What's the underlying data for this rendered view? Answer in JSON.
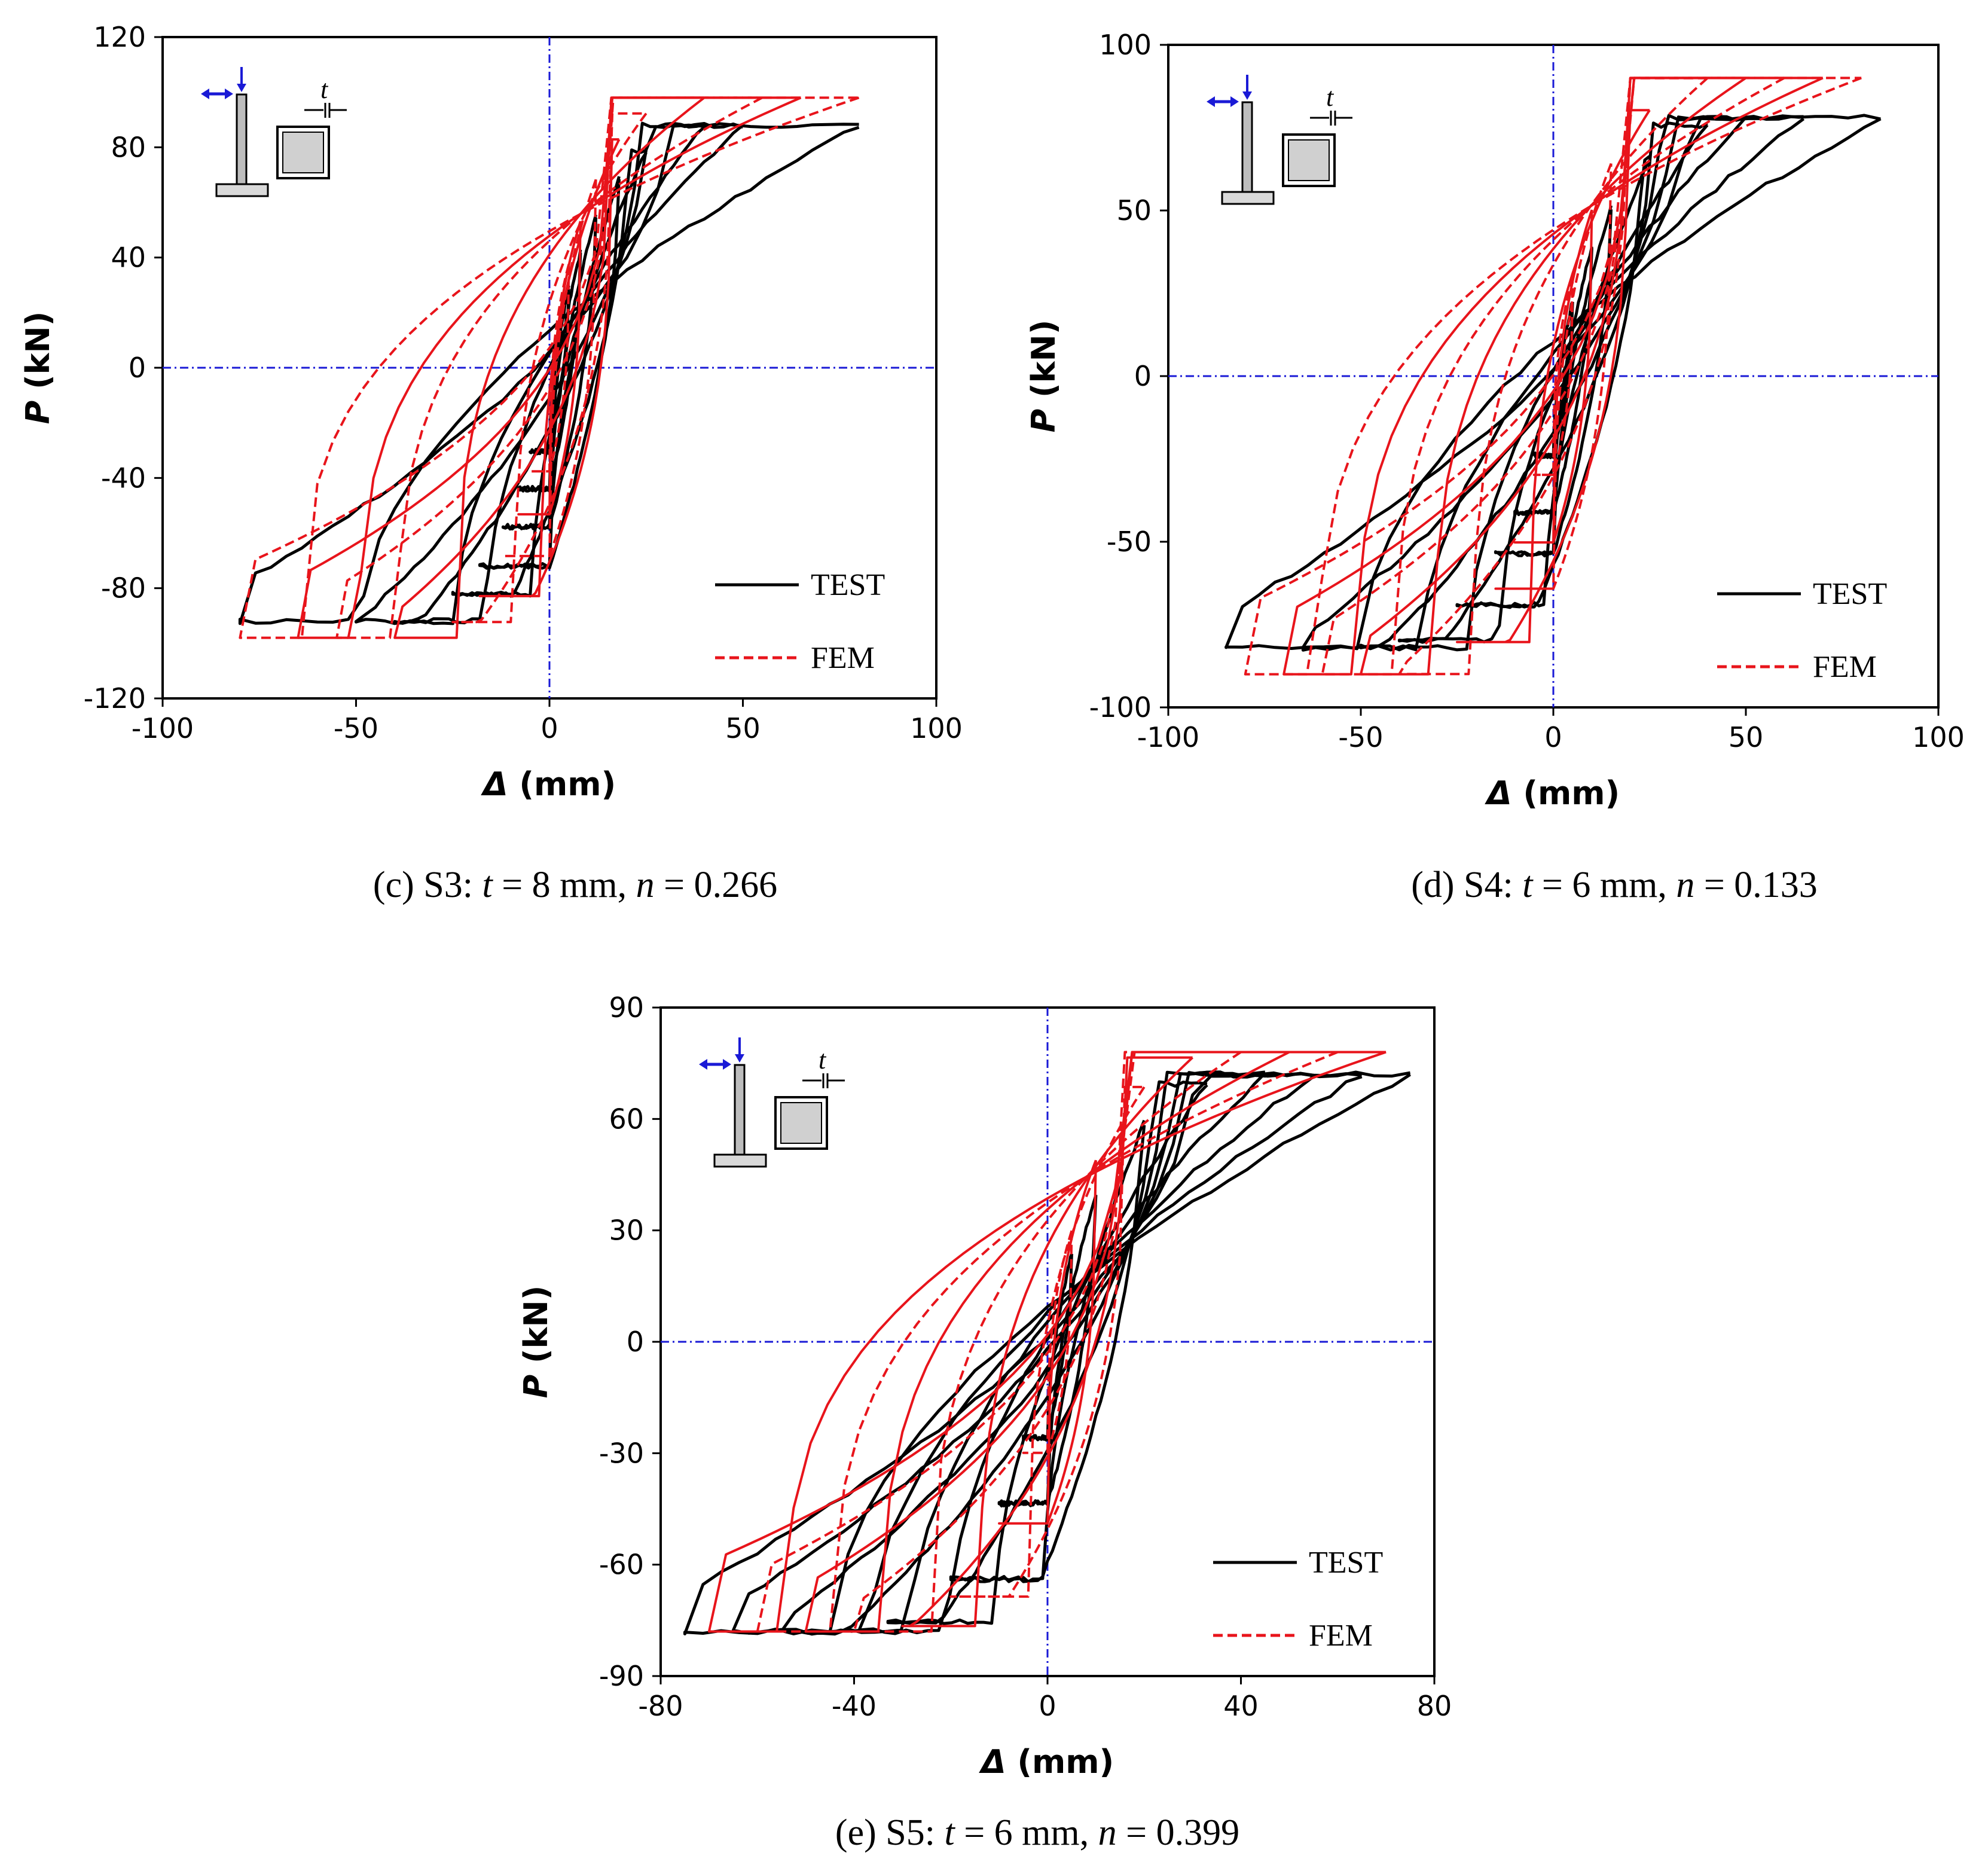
{
  "figure": {
    "description_labels": [
      "TEST",
      "FEM"
    ]
  },
  "colors": {
    "test": "#000000",
    "fem": "#e8141b",
    "reference": "#1a1ad6",
    "axis": "#000000"
  },
  "chart_data": [
    {
      "id": "c",
      "type": "line",
      "caption": {
        "prefix": "(c) S3: ",
        "t_var": "t",
        "t_val": " = 8 mm, ",
        "n_var": "n",
        "n_val": " = 0.266"
      },
      "xlabel": {
        "sym": "Δ",
        "unit": " (mm)"
      },
      "ylabel": {
        "sym": "P",
        "unit": " (kN)"
      },
      "xlim": [
        -100,
        100
      ],
      "ylim": [
        -120,
        120
      ],
      "xticks": [
        "-100",
        "-50",
        "0",
        "50",
        "100"
      ],
      "yticks": [
        "-120",
        "-80",
        "-40",
        "0",
        "40",
        "80",
        "120"
      ],
      "legend": {
        "position": "bottom-right",
        "entries": [
          "TEST",
          "FEM"
        ]
      },
      "inset_label": "t",
      "series": [
        {
          "name": "TEST",
          "peak_amplitudes_mm": [
            5,
            8,
            12,
            18,
            25,
            40,
            50,
            80
          ],
          "pmax": 88,
          "pmin": -92,
          "yield_disp": 6
        },
        {
          "name": "FEM",
          "peak_amplitudes_mm": [
            5,
            8,
            12,
            18,
            25,
            40,
            55,
            65,
            80
          ],
          "pmax": 98,
          "pmin": -98,
          "yield_disp": 5
        }
      ]
    },
    {
      "id": "d",
      "type": "line",
      "caption": {
        "prefix": "(d) S4: ",
        "t_var": "t",
        "t_val": " = 6 mm, ",
        "n_var": "n",
        "n_val": " = 0.133"
      },
      "xlabel": {
        "sym": "Δ",
        "unit": " (mm)"
      },
      "ylabel": {
        "sym": "P",
        "unit": " (kN)"
      },
      "xlim": [
        -100,
        100
      ],
      "ylim": [
        -100,
        100
      ],
      "xticks": [
        "-100",
        "-50",
        "0",
        "50",
        "100"
      ],
      "yticks": [
        "-100",
        "-50",
        "0",
        "50",
        "100"
      ],
      "legend": {
        "position": "bottom-right",
        "entries": [
          "TEST",
          "FEM"
        ]
      },
      "inset_label": "t",
      "series": [
        {
          "name": "TEST",
          "peak_amplitudes_mm": [
            5,
            10,
            15,
            25,
            40,
            50,
            65,
            85
          ],
          "pmax": 78,
          "pmin": -82,
          "yield_disp": 7
        },
        {
          "name": "FEM",
          "peak_amplitudes_mm": [
            5,
            10,
            15,
            25,
            40,
            50,
            60,
            70,
            80
          ],
          "pmax": 90,
          "pmin": -90,
          "yield_disp": 6
        }
      ]
    },
    {
      "id": "e",
      "type": "line",
      "caption": {
        "prefix": "(e) S5: ",
        "t_var": "t",
        "t_val": " = 6 mm, ",
        "n_var": "n",
        "n_val": " = 0.399"
      },
      "xlabel": {
        "sym": "Δ",
        "unit": " (mm)"
      },
      "ylabel": {
        "sym": "P",
        "unit": " (kN)"
      },
      "xlim": [
        -80,
        80
      ],
      "ylim": [
        -90,
        90
      ],
      "xticks": [
        "-80",
        "-40",
        "0",
        "40",
        "80"
      ],
      "yticks": [
        "-90",
        "-60",
        "-30",
        "0",
        "30",
        "60",
        "90"
      ],
      "legend": {
        "position": "bottom-right",
        "entries": [
          "TEST",
          "FEM"
        ]
      },
      "inset_label": "t",
      "series": [
        {
          "name": "TEST",
          "peak_amplitudes_mm": [
            5,
            10,
            20,
            33,
            45,
            55,
            65,
            75
          ],
          "pmax": 72,
          "pmin": -78,
          "yield_disp": 6
        },
        {
          "name": "FEM",
          "peak_amplitudes_mm": [
            5,
            10,
            20,
            30,
            40,
            50,
            60,
            70
          ],
          "pmax": 78,
          "pmin": -78,
          "yield_disp": 5
        }
      ]
    }
  ]
}
